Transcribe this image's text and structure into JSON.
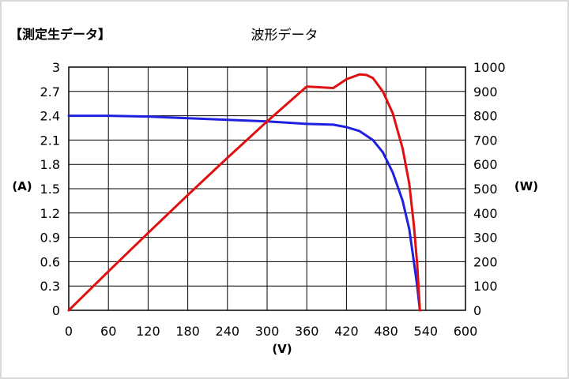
{
  "header": {
    "label": "【測定生データ】"
  },
  "chart_data": {
    "type": "line",
    "title": "波形データ",
    "xlabel": "(V)",
    "ylabel_left": "(A)",
    "ylabel_right": "(W)",
    "xlim": [
      0,
      600
    ],
    "ylim_left": [
      0,
      3
    ],
    "ylim_right": [
      0,
      1000
    ],
    "x_ticks": [
      "0",
      "60",
      "120",
      "180",
      "240",
      "300",
      "360",
      "420",
      "480",
      "540",
      "600"
    ],
    "y_left_ticks": [
      "0",
      "0.3",
      "0.6",
      "0.9",
      "1.2",
      "1.5",
      "1.8",
      "2.1",
      "2.4",
      "2.7",
      "3"
    ],
    "y_right_ticks": [
      "0",
      "100",
      "200",
      "300",
      "400",
      "500",
      "600",
      "700",
      "800",
      "900",
      "1000"
    ],
    "grid": true,
    "series": [
      {
        "axis": "left",
        "color": "#2020e0",
        "points": [
          [
            0,
            2.4
          ],
          [
            60,
            2.4
          ],
          [
            120,
            2.39
          ],
          [
            180,
            2.37
          ],
          [
            240,
            2.35
          ],
          [
            300,
            2.33
          ],
          [
            360,
            2.3
          ],
          [
            400,
            2.29
          ],
          [
            420,
            2.26
          ],
          [
            440,
            2.21
          ],
          [
            460,
            2.1
          ],
          [
            475,
            1.95
          ],
          [
            490,
            1.7
          ],
          [
            505,
            1.35
          ],
          [
            515,
            1.0
          ],
          [
            522,
            0.6
          ],
          [
            527,
            0.3
          ],
          [
            531,
            0.0
          ]
        ]
      },
      {
        "axis": "right",
        "color": "#e01010",
        "points": [
          [
            0,
            0
          ],
          [
            60,
            160
          ],
          [
            120,
            318
          ],
          [
            180,
            474
          ],
          [
            240,
            627
          ],
          [
            300,
            777
          ],
          [
            360,
            920
          ],
          [
            400,
            914
          ],
          [
            420,
            950
          ],
          [
            440,
            970
          ],
          [
            450,
            968
          ],
          [
            460,
            955
          ],
          [
            475,
            900
          ],
          [
            490,
            810
          ],
          [
            505,
            665
          ],
          [
            515,
            520
          ],
          [
            522,
            350
          ],
          [
            527,
            190
          ],
          [
            531,
            0
          ]
        ]
      }
    ]
  }
}
